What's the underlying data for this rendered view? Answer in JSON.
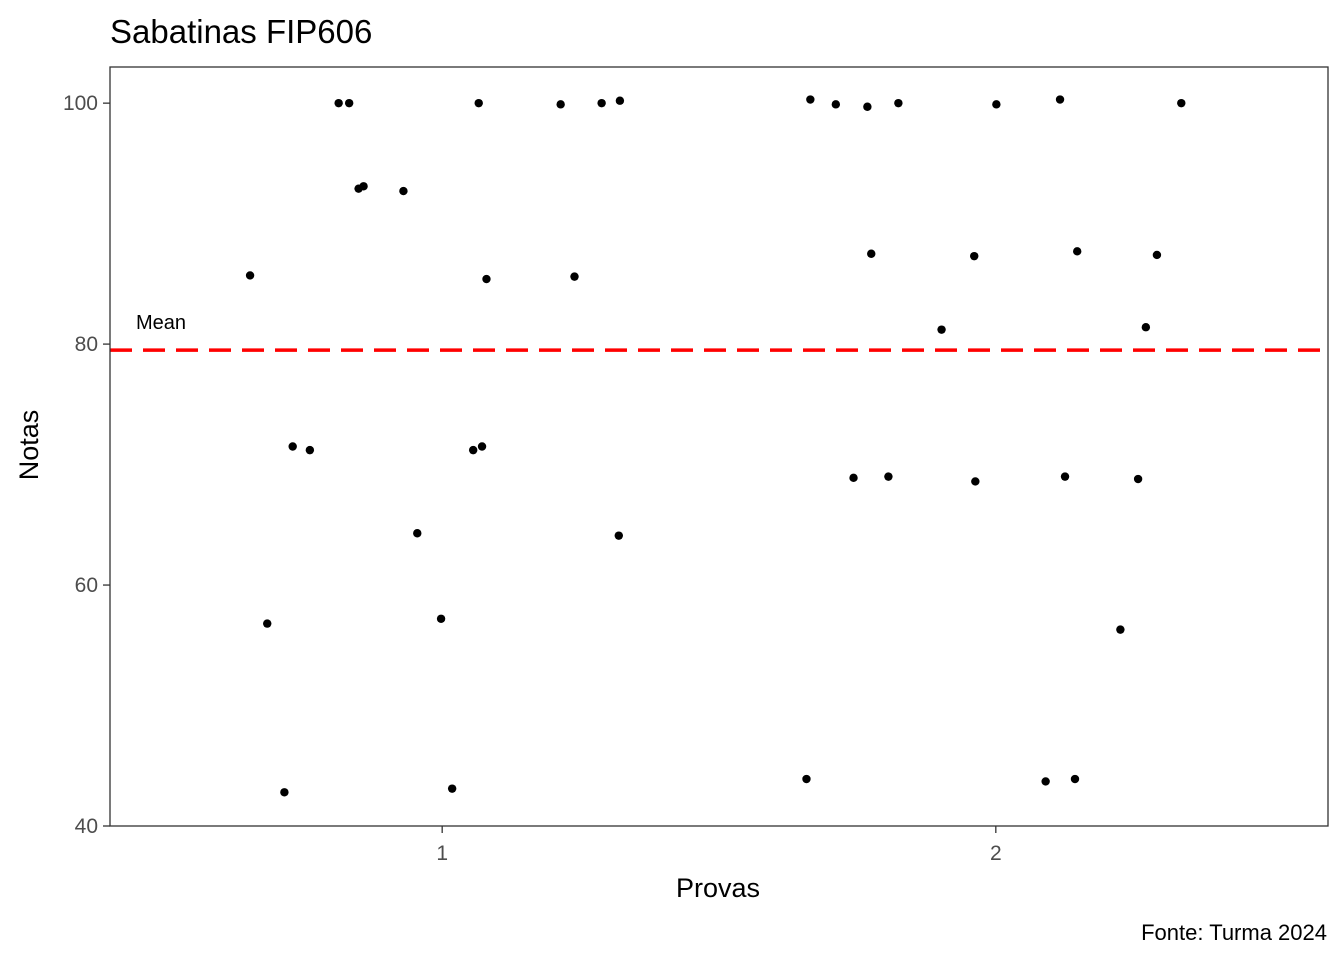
{
  "chart_data": {
    "type": "scatter",
    "title": "Sabatinas FIP606",
    "xlabel": "Provas",
    "ylabel": "Notas",
    "caption": "Fonte: Turma 2024",
    "xlim": [
      0.4,
      2.6
    ],
    "ylim": [
      40,
      103
    ],
    "x_ticks": [
      1,
      2
    ],
    "x_tick_labels": [
      "1",
      "2"
    ],
    "y_ticks": [
      40,
      60,
      80,
      100
    ],
    "y_tick_labels": [
      "40",
      "60",
      "80",
      "100"
    ],
    "grid": false,
    "colors": {
      "points": "#000000",
      "reference_line": "#ff0000",
      "panel_border": "#333333"
    },
    "reference_line": {
      "y": 79.5,
      "label": "Mean",
      "style": "dashed"
    },
    "points": [
      {
        "x": 0.653,
        "y": 85.7
      },
      {
        "x": 0.684,
        "y": 56.8
      },
      {
        "x": 0.715,
        "y": 42.8
      },
      {
        "x": 0.73,
        "y": 71.5
      },
      {
        "x": 0.761,
        "y": 71.2
      },
      {
        "x": 0.813,
        "y": 100.0
      },
      {
        "x": 0.832,
        "y": 100.0
      },
      {
        "x": 0.849,
        "y": 92.9
      },
      {
        "x": 0.858,
        "y": 93.1
      },
      {
        "x": 0.93,
        "y": 92.7
      },
      {
        "x": 0.955,
        "y": 64.3
      },
      {
        "x": 0.998,
        "y": 57.2
      },
      {
        "x": 1.018,
        "y": 43.1
      },
      {
        "x": 1.056,
        "y": 71.2
      },
      {
        "x": 1.066,
        "y": 100.0
      },
      {
        "x": 1.072,
        "y": 71.5
      },
      {
        "x": 1.08,
        "y": 85.4
      },
      {
        "x": 1.214,
        "y": 99.9
      },
      {
        "x": 1.239,
        "y": 85.6
      },
      {
        "x": 1.288,
        "y": 100.0
      },
      {
        "x": 1.319,
        "y": 64.1
      },
      {
        "x": 1.321,
        "y": 100.2
      },
      {
        "x": 1.658,
        "y": 43.9
      },
      {
        "x": 1.665,
        "y": 100.3
      },
      {
        "x": 1.711,
        "y": 99.9
      },
      {
        "x": 1.743,
        "y": 68.9
      },
      {
        "x": 1.768,
        "y": 99.7
      },
      {
        "x": 1.775,
        "y": 87.5
      },
      {
        "x": 1.806,
        "y": 69.0
      },
      {
        "x": 1.824,
        "y": 100.0
      },
      {
        "x": 1.902,
        "y": 81.2
      },
      {
        "x": 1.961,
        "y": 87.3
      },
      {
        "x": 1.963,
        "y": 68.6
      },
      {
        "x": 2.001,
        "y": 99.9
      },
      {
        "x": 2.09,
        "y": 43.7
      },
      {
        "x": 2.116,
        "y": 100.3
      },
      {
        "x": 2.125,
        "y": 69.0
      },
      {
        "x": 2.143,
        "y": 43.9
      },
      {
        "x": 2.147,
        "y": 87.7
      },
      {
        "x": 2.225,
        "y": 56.3
      },
      {
        "x": 2.257,
        "y": 68.8
      },
      {
        "x": 2.271,
        "y": 81.4
      },
      {
        "x": 2.291,
        "y": 87.4
      },
      {
        "x": 2.335,
        "y": 100.0
      }
    ]
  }
}
